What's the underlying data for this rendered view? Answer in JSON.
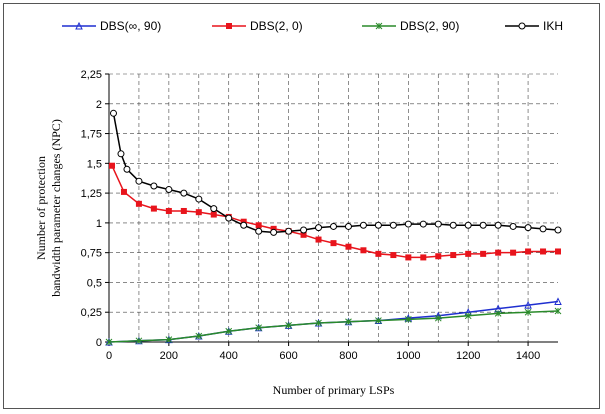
{
  "chart_data": {
    "type": "line",
    "title": "",
    "xlabel": "Number of primary LSPs",
    "ylabel_lines": [
      "Number of protection",
      "bandwidth parameter changes (NPC)"
    ],
    "xlim": [
      0,
      1500
    ],
    "ylim": [
      0,
      2.25
    ],
    "x_ticks": [
      0,
      200,
      400,
      600,
      800,
      1000,
      1200,
      1400
    ],
    "y_ticks": [
      0,
      0.25,
      0.5,
      0.75,
      1,
      1.25,
      1.5,
      1.75,
      2,
      2.25
    ],
    "y_tick_labels": [
      "0",
      "0,25",
      "0,5",
      "0,75",
      "1",
      "1,25",
      "1,5",
      "1,75",
      "2",
      "2,25"
    ],
    "grid": true,
    "legend_position": "top",
    "series": [
      {
        "name": "DBS(∞, 90)",
        "color": "#1f2fd0",
        "marker": "triangle",
        "x": [
          0,
          100,
          200,
          300,
          400,
          500,
          600,
          700,
          800,
          900,
          1000,
          1100,
          1200,
          1300,
          1400,
          1500
        ],
        "y": [
          0,
          0.01,
          0.02,
          0.05,
          0.09,
          0.12,
          0.14,
          0.16,
          0.17,
          0.18,
          0.2,
          0.22,
          0.25,
          0.28,
          0.31,
          0.34
        ]
      },
      {
        "name": "DBS(2, 0)",
        "color": "#e8141c",
        "marker": "square",
        "x": [
          10,
          50,
          100,
          150,
          200,
          250,
          300,
          350,
          400,
          450,
          500,
          550,
          600,
          650,
          700,
          750,
          800,
          850,
          900,
          950,
          1000,
          1050,
          1100,
          1150,
          1200,
          1250,
          1300,
          1350,
          1400,
          1450,
          1500
        ],
        "y": [
          1.48,
          1.26,
          1.16,
          1.12,
          1.1,
          1.1,
          1.09,
          1.07,
          1.05,
          1.01,
          0.98,
          0.95,
          0.93,
          0.9,
          0.86,
          0.83,
          0.8,
          0.77,
          0.74,
          0.73,
          0.71,
          0.71,
          0.72,
          0.73,
          0.74,
          0.74,
          0.75,
          0.75,
          0.76,
          0.76,
          0.76
        ]
      },
      {
        "name": "DBS(2, 90)",
        "color": "#2a8a2a",
        "marker": "star",
        "x": [
          0,
          100,
          200,
          300,
          400,
          500,
          600,
          700,
          800,
          900,
          1000,
          1100,
          1200,
          1300,
          1400,
          1500
        ],
        "y": [
          0,
          0.01,
          0.02,
          0.05,
          0.09,
          0.12,
          0.14,
          0.16,
          0.17,
          0.18,
          0.19,
          0.2,
          0.22,
          0.24,
          0.25,
          0.26
        ]
      },
      {
        "name": "IKH",
        "color": "#000000",
        "marker": "circle",
        "x": [
          15,
          40,
          60,
          100,
          150,
          200,
          250,
          300,
          350,
          400,
          450,
          500,
          550,
          600,
          650,
          700,
          750,
          800,
          850,
          900,
          950,
          1000,
          1050,
          1100,
          1150,
          1200,
          1250,
          1300,
          1350,
          1400,
          1450,
          1500
        ],
        "y": [
          1.92,
          1.58,
          1.45,
          1.35,
          1.31,
          1.28,
          1.25,
          1.2,
          1.12,
          1.04,
          0.98,
          0.93,
          0.92,
          0.93,
          0.94,
          0.96,
          0.97,
          0.97,
          0.98,
          0.98,
          0.98,
          0.99,
          0.99,
          0.99,
          0.98,
          0.98,
          0.98,
          0.98,
          0.97,
          0.96,
          0.95,
          0.94
        ]
      }
    ]
  }
}
